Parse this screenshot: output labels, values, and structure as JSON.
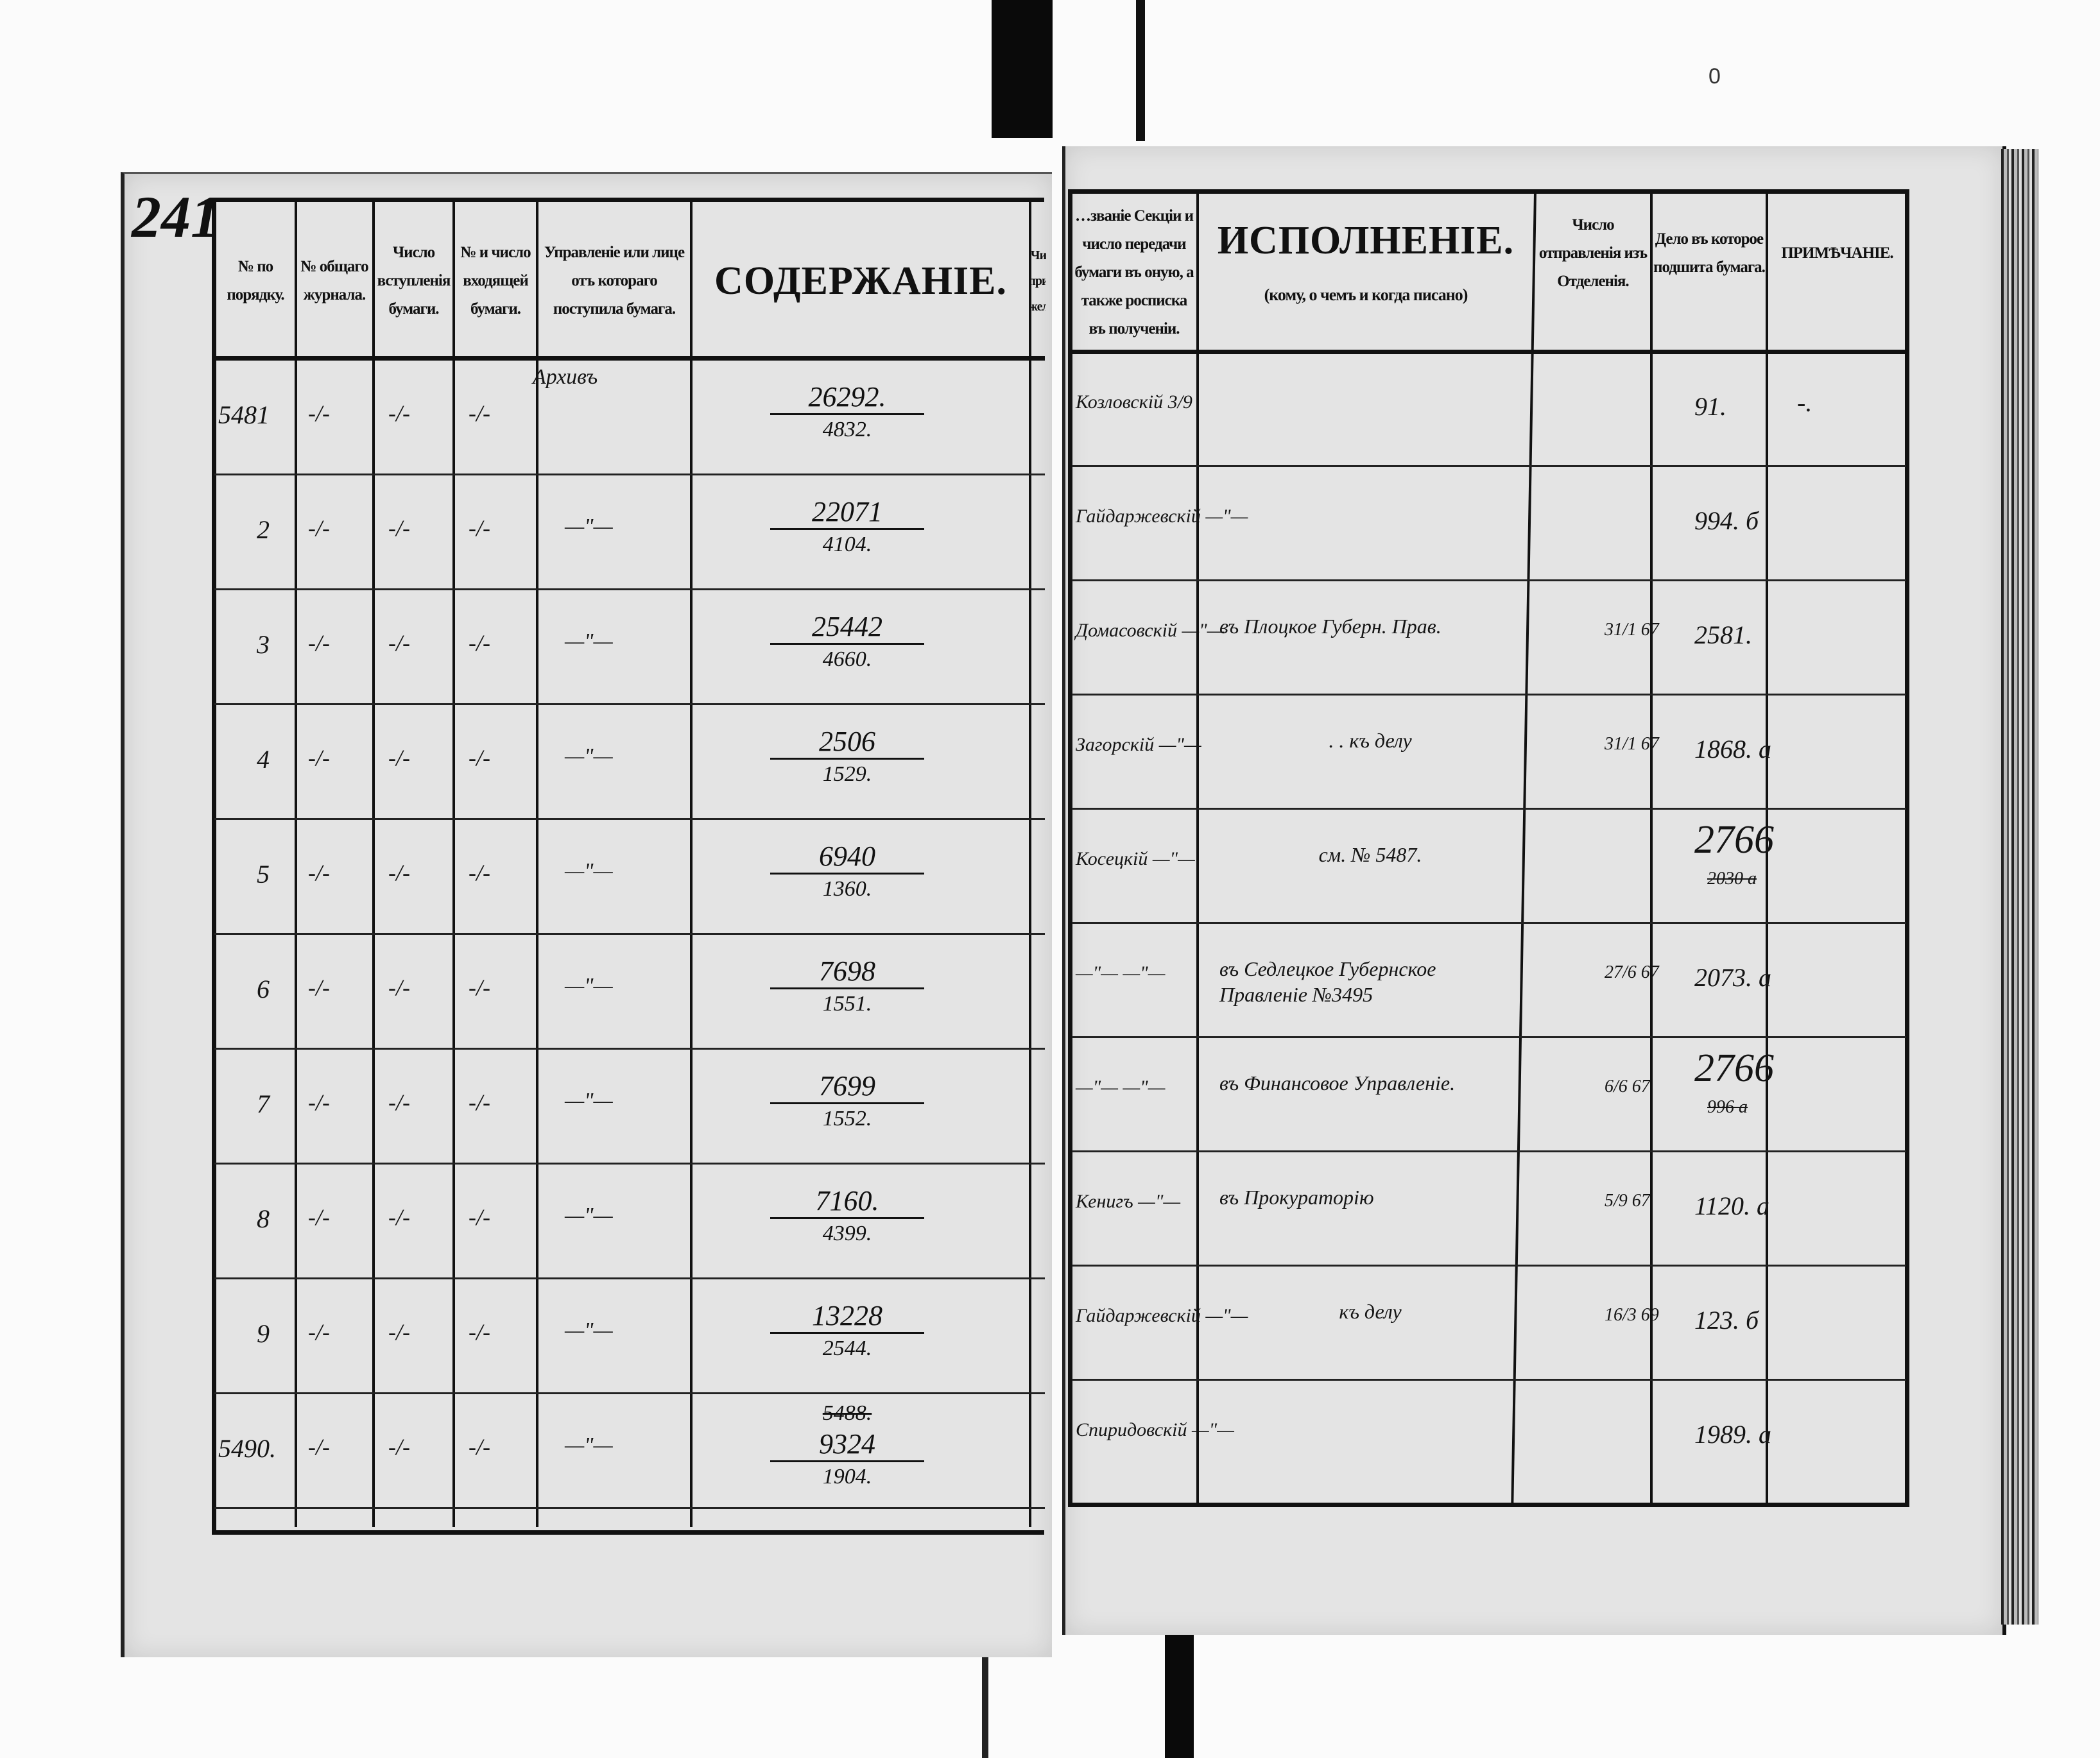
{
  "folio_number": "241",
  "corner_mark": "0",
  "left_headers": {
    "order_no": "№ по порядку.",
    "general_journal": "№ общаго журнала.",
    "receipt_date": "Число вступленія бумаги.",
    "incoming_no": "№ и число входящей бумаги.",
    "sender": "Управленіе или лице отъ котораго поступила бумага.",
    "content": "СОДЕРЖАНІЕ.",
    "partial": "Чи при жел"
  },
  "right_headers": {
    "section": "…званіе Секціи и число передачи бумаги въ оную, а также росписка въ полученіи.",
    "execution_title": "ИСПОЛНЕНІЕ.",
    "execution_sub": "(кому, о чемъ и когда писано)",
    "dispatch": "Число отправленія изъ Отделенія.",
    "case": "Дело въ которое подшита бумага.",
    "note": "ПРИМѢЧАНІЕ."
  },
  "rows": [
    {
      "no": "5481",
      "journal": "-/-",
      "receipt": "-/-",
      "incoming": "-/-",
      "sender": "Архивъ",
      "content_top": "26292.",
      "content_bottom": "4832.",
      "content_struck": "",
      "section": "Козловскій 3/9",
      "execution": "",
      "dispatch": "",
      "case": "91.",
      "case_struck": "",
      "note": "-."
    },
    {
      "no": "2",
      "journal": "-/-",
      "receipt": "-/-",
      "incoming": "-/-",
      "sender": "—\"—",
      "content_top": "22071",
      "content_bottom": "4104.",
      "content_struck": "",
      "section": "Гайдаржевскій —\"—",
      "execution": "",
      "dispatch": "",
      "case": "994. б",
      "case_struck": "",
      "note": ""
    },
    {
      "no": "3",
      "journal": "-/-",
      "receipt": "-/-",
      "incoming": "-/-",
      "sender": "—\"—",
      "content_top": "25442",
      "content_bottom": "4660.",
      "content_struck": "",
      "section": "Домасовскій —\"—",
      "execution": "въ Плоцкое Губерн. Прав.",
      "dispatch": "31/1 67",
      "case": "2581.",
      "case_struck": "",
      "note": ""
    },
    {
      "no": "4",
      "journal": "-/-",
      "receipt": "-/-",
      "incoming": "-/-",
      "sender": "—\"—",
      "content_top": "2506",
      "content_bottom": "1529.",
      "content_struck": "",
      "section": "Загорскій —\"—",
      "execution": ". . къ делу",
      "dispatch": "31/1 67",
      "case": "1868. а",
      "case_struck": "",
      "note": ""
    },
    {
      "no": "5",
      "journal": "-/-",
      "receipt": "-/-",
      "incoming": "-/-",
      "sender": "—\"—",
      "content_top": "6940",
      "content_bottom": "1360.",
      "content_struck": "",
      "section": "Косецкій —\"—",
      "execution": "см. № 5487.",
      "dispatch": "",
      "case": "2766",
      "case_struck": "2030 а",
      "note": ""
    },
    {
      "no": "6",
      "journal": "-/-",
      "receipt": "-/-",
      "incoming": "-/-",
      "sender": "—\"—",
      "content_top": "7698",
      "content_bottom": "1551.",
      "content_struck": "",
      "section": "—\"— —\"—",
      "execution": "въ Седлецкое Губернское Правленіе №3495",
      "dispatch": "27/6 67",
      "case": "2073. а",
      "case_struck": "",
      "note": ""
    },
    {
      "no": "7",
      "journal": "-/-",
      "receipt": "-/-",
      "incoming": "-/-",
      "sender": "—\"—",
      "content_top": "7699",
      "content_bottom": "1552.",
      "content_struck": "",
      "section": "—\"— —\"—",
      "execution": "въ Финансовое Управленіе.",
      "dispatch": "6/6 67",
      "case": "2766",
      "case_struck": "996 а",
      "note": ""
    },
    {
      "no": "8",
      "journal": "-/-",
      "receipt": "-/-",
      "incoming": "-/-",
      "sender": "—\"—",
      "content_top": "7160.",
      "content_bottom": "4399.",
      "content_struck": "",
      "section": "Кенигъ —\"—",
      "execution": "въ Прокураторію",
      "dispatch": "5/9 67",
      "case": "1120. а",
      "case_struck": "",
      "note": ""
    },
    {
      "no": "9",
      "journal": "-/-",
      "receipt": "-/-",
      "incoming": "-/-",
      "sender": "—\"—",
      "content_top": "13228",
      "content_bottom": "2544.",
      "content_struck": "",
      "section": "Гайдаржевскій —\"—",
      "execution": "къ делу",
      "dispatch": "16/3 69",
      "case": "123. б",
      "case_struck": "",
      "note": ""
    },
    {
      "no": "5490.",
      "journal": "-/-",
      "receipt": "-/-",
      "incoming": "-/-",
      "sender": "—\"—",
      "content_top": "9324",
      "content_bottom": "1904.",
      "content_struck": "5488.",
      "section": "Спиридовскій —\"—",
      "execution": "",
      "dispatch": "",
      "case": "1989. а",
      "case_struck": "",
      "note": ""
    }
  ]
}
